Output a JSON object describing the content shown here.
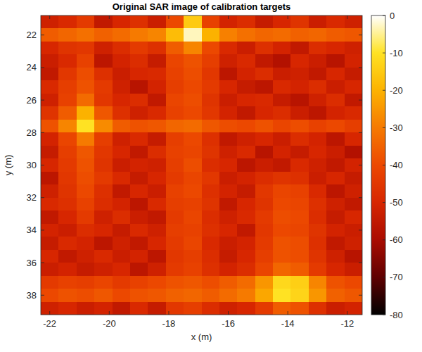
{
  "chart_data": {
    "type": "heatmap",
    "title": "Original SAR image of calibration targets",
    "xlabel": "x (m)",
    "ylabel": "y (m)",
    "x": [
      -22.0,
      -21.4,
      -20.8,
      -20.2,
      -19.6,
      -19.0,
      -18.4,
      -17.8,
      -17.2,
      -16.6,
      -16.0,
      -15.4,
      -14.8,
      -14.2,
      -13.6,
      -13.0,
      -12.4,
      -11.8
    ],
    "y": [
      21.2,
      22.0,
      22.8,
      23.6,
      24.4,
      25.2,
      26.0,
      26.8,
      27.6,
      28.4,
      29.2,
      30.0,
      30.8,
      31.6,
      32.4,
      33.2,
      34.0,
      34.8,
      35.6,
      36.4,
      37.2,
      38.0,
      38.8
    ],
    "cells": [
      [
        -52,
        -49,
        -44,
        -55,
        -50,
        -47,
        -53,
        -40,
        -15,
        -42,
        -51,
        -48,
        -54,
        -50,
        -46,
        -53,
        -49,
        -52
      ],
      [
        -36,
        -34,
        -32,
        -35,
        -33,
        -30,
        -28,
        -18,
        -3,
        -20,
        -29,
        -32,
        -34,
        -33,
        -35,
        -34,
        -36,
        -37
      ],
      [
        -50,
        -46,
        -45,
        -52,
        -48,
        -44,
        -47,
        -36,
        -28,
        -40,
        -49,
        -53,
        -47,
        -51,
        -55,
        -48,
        -50,
        -52
      ],
      [
        -53,
        -49,
        -42,
        -56,
        -51,
        -48,
        -54,
        -41,
        -38,
        -43,
        -52,
        -49,
        -55,
        -58,
        -50,
        -53,
        -57,
        -51
      ],
      [
        -55,
        -45,
        -39,
        -47,
        -53,
        -50,
        -49,
        -42,
        -39,
        -45,
        -56,
        -51,
        -48,
        -53,
        -52,
        -55,
        -50,
        -54
      ],
      [
        -49,
        -43,
        -38,
        -44,
        -52,
        -57,
        -51,
        -43,
        -40,
        -44,
        -50,
        -54,
        -56,
        -49,
        -51,
        -48,
        -53,
        -50
      ],
      [
        -52,
        -42,
        -33,
        -45,
        -50,
        -48,
        -55,
        -41,
        -39,
        -46,
        -53,
        -50,
        -49,
        -54,
        -57,
        -52,
        -48,
        -55
      ],
      [
        -46,
        -36,
        -20,
        -37,
        -47,
        -52,
        -49,
        -42,
        -40,
        -45,
        -51,
        -55,
        -50,
        -48,
        -53,
        -56,
        -51,
        -49
      ],
      [
        -38,
        -28,
        -10,
        -27,
        -36,
        -38,
        -37,
        -34,
        -33,
        -37,
        -39,
        -40,
        -38,
        -41,
        -39,
        -42,
        -40,
        -43
      ],
      [
        -51,
        -41,
        -30,
        -43,
        -52,
        -49,
        -54,
        -43,
        -40,
        -47,
        -55,
        -52,
        -50,
        -53,
        -48,
        -51,
        -56,
        -50
      ],
      [
        -54,
        -43,
        -37,
        -45,
        -50,
        -55,
        -48,
        -42,
        -41,
        -46,
        -52,
        -49,
        -57,
        -51,
        -54,
        -50,
        -53,
        -58
      ],
      [
        -50,
        -44,
        -38,
        -46,
        -53,
        -51,
        -52,
        -43,
        -39,
        -48,
        -50,
        -56,
        -53,
        -55,
        -49,
        -52,
        -55,
        -51
      ],
      [
        -56,
        -45,
        -39,
        -44,
        -49,
        -54,
        -50,
        -44,
        -41,
        -45,
        -53,
        -51,
        -48,
        -46,
        -47,
        -53,
        -50,
        -54
      ],
      [
        -52,
        -46,
        -40,
        -47,
        -55,
        -50,
        -53,
        -42,
        -40,
        -47,
        -51,
        -54,
        -45,
        -41,
        -42,
        -49,
        -56,
        -52
      ],
      [
        -49,
        -47,
        -42,
        -48,
        -51,
        -56,
        -49,
        -43,
        -42,
        -46,
        -55,
        -50,
        -46,
        -40,
        -41,
        -47,
        -52,
        -55
      ],
      [
        -55,
        -50,
        -44,
        -52,
        -48,
        -53,
        -55,
        -44,
        -41,
        -48,
        -52,
        -49,
        -44,
        -39,
        -40,
        -48,
        -54,
        -50
      ],
      [
        -51,
        -53,
        -48,
        -50,
        -54,
        -49,
        -52,
        -43,
        -42,
        -47,
        -50,
        -55,
        -45,
        -40,
        -41,
        -46,
        -51,
        -53
      ],
      [
        -54,
        -49,
        -51,
        -56,
        -52,
        -55,
        -50,
        -44,
        -41,
        -49,
        -53,
        -51,
        -44,
        -38,
        -39,
        -47,
        -55,
        -52
      ],
      [
        -50,
        -55,
        -52,
        -49,
        -53,
        -51,
        -56,
        -45,
        -43,
        -48,
        -54,
        -50,
        -43,
        -38,
        -39,
        -46,
        -52,
        -57
      ],
      [
        -53,
        -51,
        -54,
        -52,
        -50,
        -56,
        -52,
        -44,
        -42,
        -47,
        -51,
        -48,
        -41,
        -34,
        -36,
        -44,
        -50,
        -53
      ],
      [
        -44,
        -42,
        -43,
        -41,
        -44,
        -42,
        -40,
        -38,
        -37,
        -39,
        -36,
        -33,
        -25,
        -12,
        -14,
        -28,
        -38,
        -40
      ],
      [
        -40,
        -38,
        -39,
        -37,
        -40,
        -38,
        -37,
        -35,
        -34,
        -36,
        -33,
        -30,
        -22,
        -10,
        -13,
        -25,
        -35,
        -37
      ],
      [
        -52,
        -50,
        -53,
        -51,
        -55,
        -49,
        -54,
        -45,
        -43,
        -48,
        -52,
        -50,
        -44,
        -36,
        -38,
        -47,
        -53,
        -51
      ]
    ],
    "xlim": [
      -22.3,
      -11.5
    ],
    "ylim": [
      20.8,
      39.2
    ],
    "xticks": [
      -22,
      -20,
      -18,
      -16,
      -14,
      -12
    ],
    "yticks": [
      22,
      24,
      26,
      28,
      30,
      32,
      34,
      36,
      38
    ],
    "colorbar_range": [
      -80,
      0
    ],
    "colorbar_ticks": [
      0,
      -10,
      -20,
      -30,
      -40,
      -50,
      -60,
      -70,
      -80
    ]
  }
}
